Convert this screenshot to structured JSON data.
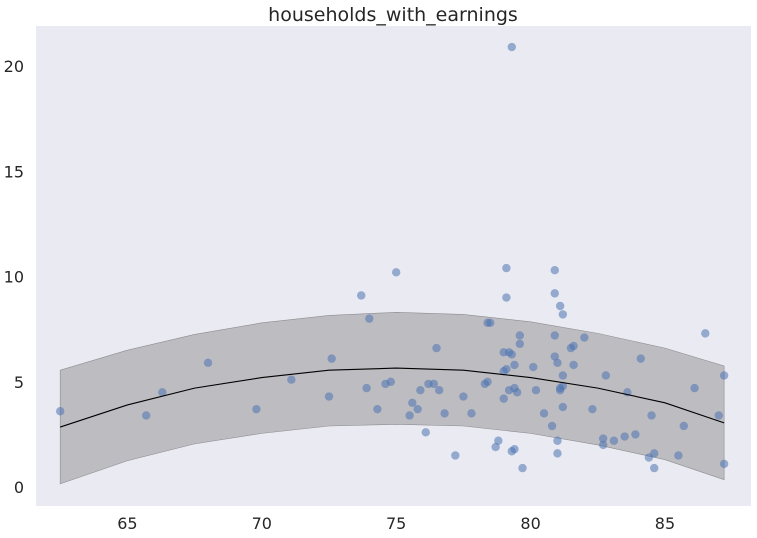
{
  "chart_data": {
    "type": "scatter",
    "title": "households_with_earnings",
    "xlabel": "",
    "ylabel": "",
    "xlim": [
      61.6,
      88.2
    ],
    "ylim": [
      -0.9,
      21.9
    ],
    "xticks": [
      65,
      70,
      75,
      80,
      85
    ],
    "yticks": [
      0,
      5,
      10,
      15,
      20
    ],
    "grid": false,
    "colors": {
      "background": "#eaeaf2",
      "points": "#4c72b0",
      "band": "#a9a9ad",
      "fit_line": "#000000"
    },
    "points": [
      [
        62.5,
        3.6
      ],
      [
        65.7,
        3.4
      ],
      [
        66.3,
        4.5
      ],
      [
        68.0,
        5.9
      ],
      [
        69.8,
        3.7
      ],
      [
        71.1,
        5.1
      ],
      [
        72.5,
        4.3
      ],
      [
        72.6,
        6.1
      ],
      [
        73.7,
        9.1
      ],
      [
        73.9,
        4.7
      ],
      [
        74.0,
        8.0
      ],
      [
        74.3,
        3.7
      ],
      [
        74.6,
        4.9
      ],
      [
        74.8,
        5.0
      ],
      [
        75.0,
        10.2
      ],
      [
        75.5,
        3.4
      ],
      [
        75.6,
        4.0
      ],
      [
        75.8,
        3.7
      ],
      [
        75.9,
        4.6
      ],
      [
        76.1,
        2.6
      ],
      [
        76.2,
        4.9
      ],
      [
        76.4,
        4.9
      ],
      [
        76.5,
        6.6
      ],
      [
        76.6,
        4.6
      ],
      [
        76.8,
        3.5
      ],
      [
        77.2,
        1.5
      ],
      [
        77.5,
        4.3
      ],
      [
        77.8,
        3.5
      ],
      [
        78.3,
        4.9
      ],
      [
        78.4,
        7.8
      ],
      [
        78.4,
        5.0
      ],
      [
        78.5,
        7.8
      ],
      [
        78.7,
        1.9
      ],
      [
        78.8,
        2.2
      ],
      [
        79.0,
        5.5
      ],
      [
        79.0,
        4.2
      ],
      [
        79.0,
        6.4
      ],
      [
        79.1,
        10.4
      ],
      [
        79.1,
        9.0
      ],
      [
        79.1,
        5.6
      ],
      [
        79.2,
        6.4
      ],
      [
        79.2,
        4.6
      ],
      [
        79.3,
        6.3
      ],
      [
        79.3,
        1.7
      ],
      [
        79.3,
        20.9
      ],
      [
        79.4,
        5.8
      ],
      [
        79.4,
        1.8
      ],
      [
        79.4,
        4.7
      ],
      [
        79.5,
        4.5
      ],
      [
        79.6,
        7.2
      ],
      [
        79.6,
        6.8
      ],
      [
        79.7,
        0.9
      ],
      [
        80.1,
        5.7
      ],
      [
        80.2,
        4.6
      ],
      [
        80.5,
        3.5
      ],
      [
        80.8,
        2.9
      ],
      [
        80.9,
        10.3
      ],
      [
        80.9,
        9.2
      ],
      [
        80.9,
        7.2
      ],
      [
        80.9,
        6.2
      ],
      [
        81.0,
        5.9
      ],
      [
        81.0,
        2.2
      ],
      [
        81.0,
        1.6
      ],
      [
        81.1,
        8.6
      ],
      [
        81.1,
        4.7
      ],
      [
        81.1,
        4.6
      ],
      [
        81.2,
        8.2
      ],
      [
        81.2,
        3.8
      ],
      [
        81.2,
        4.8
      ],
      [
        81.2,
        5.3
      ],
      [
        81.5,
        6.6
      ],
      [
        81.6,
        6.7
      ],
      [
        81.6,
        5.8
      ],
      [
        82.0,
        7.1
      ],
      [
        82.3,
        3.7
      ],
      [
        82.7,
        2.3
      ],
      [
        82.7,
        2.0
      ],
      [
        82.8,
        5.3
      ],
      [
        83.1,
        2.2
      ],
      [
        83.5,
        2.4
      ],
      [
        83.6,
        4.5
      ],
      [
        83.9,
        2.5
      ],
      [
        84.1,
        6.1
      ],
      [
        84.4,
        1.4
      ],
      [
        84.5,
        3.4
      ],
      [
        84.6,
        1.6
      ],
      [
        84.6,
        0.9
      ],
      [
        85.5,
        1.5
      ],
      [
        85.7,
        2.9
      ],
      [
        86.1,
        4.7
      ],
      [
        86.5,
        7.3
      ],
      [
        87.0,
        3.4
      ],
      [
        87.2,
        5.3
      ],
      [
        87.2,
        1.1
      ]
    ],
    "fit": {
      "x": [
        62.5,
        65,
        67.5,
        70,
        72.5,
        75,
        77.5,
        80,
        82.5,
        85,
        87.2
      ],
      "y": [
        2.85,
        3.9,
        4.7,
        5.2,
        5.55,
        5.65,
        5.55,
        5.2,
        4.7,
        4.0,
        3.05
      ]
    },
    "band": {
      "x": [
        62.5,
        65,
        67.5,
        70,
        72.5,
        75,
        77.5,
        80,
        82.5,
        85,
        87.2
      ],
      "lower": [
        0.15,
        1.25,
        2.05,
        2.55,
        2.9,
        2.98,
        2.9,
        2.55,
        2.0,
        1.3,
        0.35
      ],
      "upper": [
        5.55,
        6.5,
        7.25,
        7.8,
        8.15,
        8.3,
        8.2,
        7.85,
        7.3,
        6.6,
        5.75
      ]
    }
  }
}
